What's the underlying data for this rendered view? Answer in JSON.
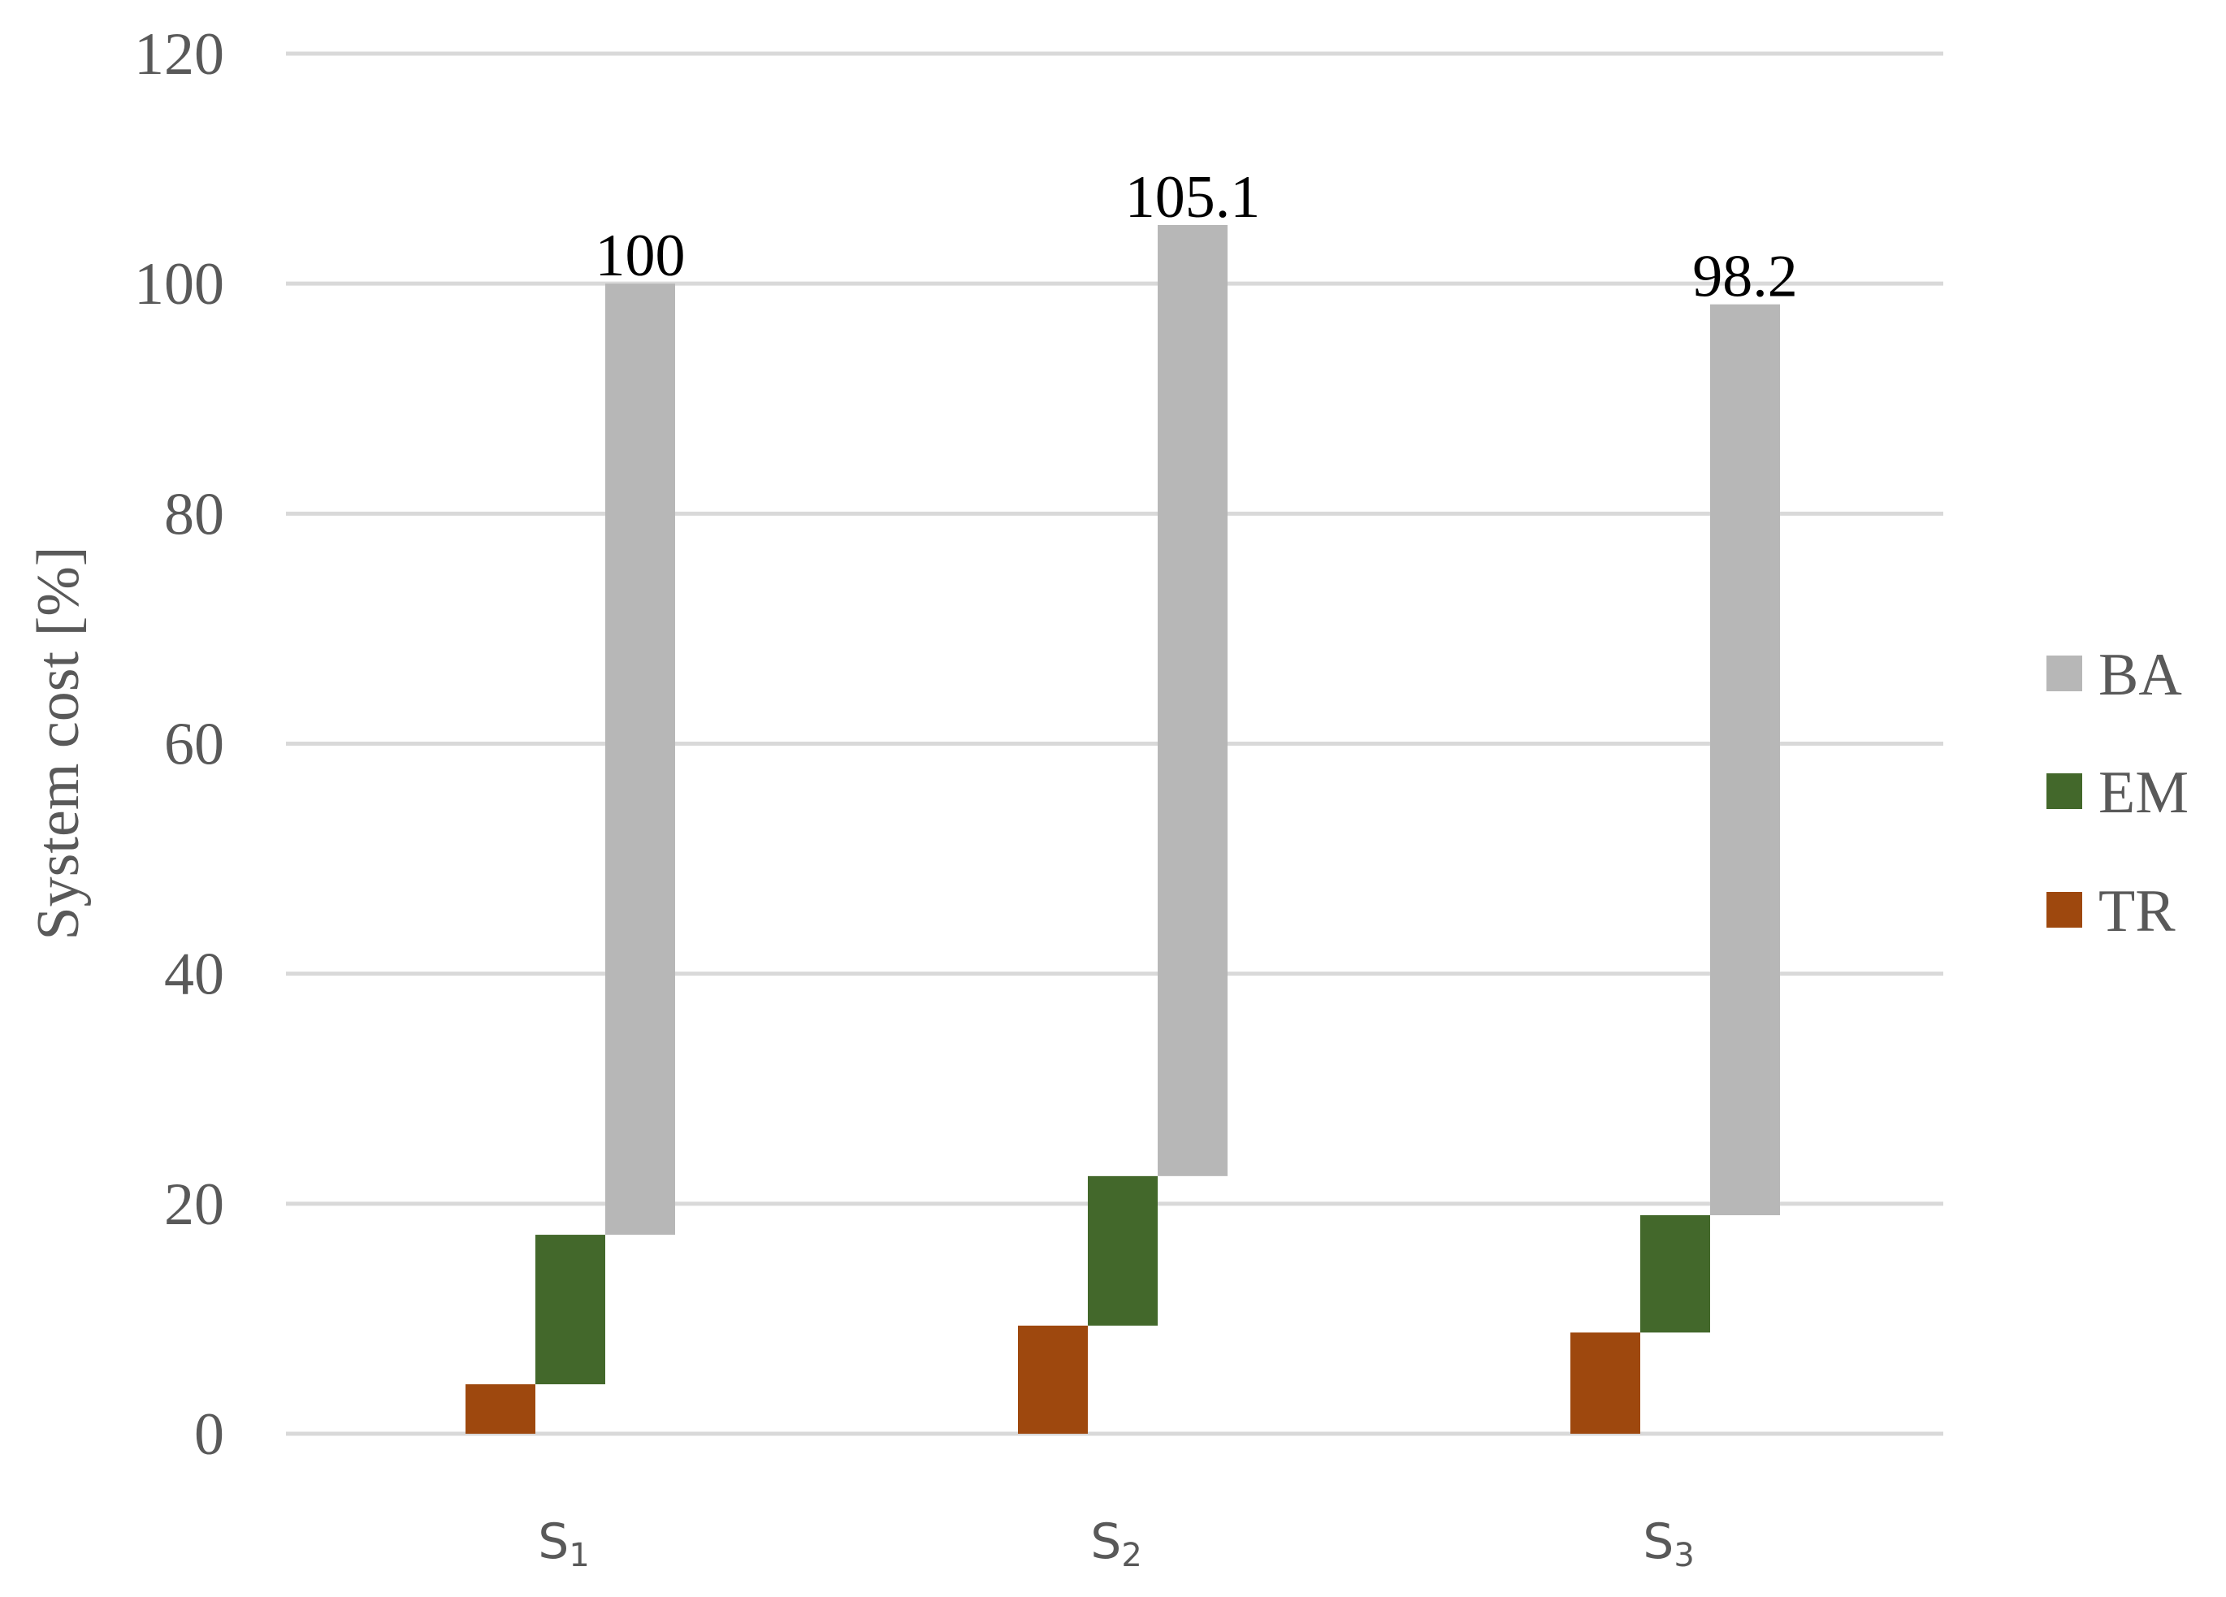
{
  "chart_data": {
    "type": "bar",
    "subtype": "waterfall-stacked",
    "categories": [
      {
        "main": "S",
        "sub": "1"
      },
      {
        "main": "S",
        "sub": "2"
      },
      {
        "main": "S",
        "sub": "3"
      }
    ],
    "series": [
      {
        "name": "TR",
        "color": "#9E480E",
        "values": [
          4.3,
          9.4,
          8.8
        ]
      },
      {
        "name": "EM",
        "color": "#43682B",
        "values": [
          13.0,
          13.0,
          10.2
        ]
      },
      {
        "name": "BA",
        "color": "#B7B7B7",
        "values": [
          82.7,
          82.7,
          79.2
        ]
      }
    ],
    "totals": [
      100,
      105.1,
      98.2
    ],
    "total_labels": [
      "100",
      "105.1",
      "98.2"
    ],
    "ylabel": "System cost [%]",
    "ylim": [
      0,
      120
    ],
    "yticks": [
      0,
      20,
      40,
      60,
      80,
      100,
      120
    ],
    "gridlines": true,
    "legend_position": "right",
    "legend_order": [
      "BA",
      "EM",
      "TR"
    ],
    "colors": {
      "grid": "#D9D9D9",
      "axis_text": "#595959",
      "data_label": "#000000"
    }
  }
}
